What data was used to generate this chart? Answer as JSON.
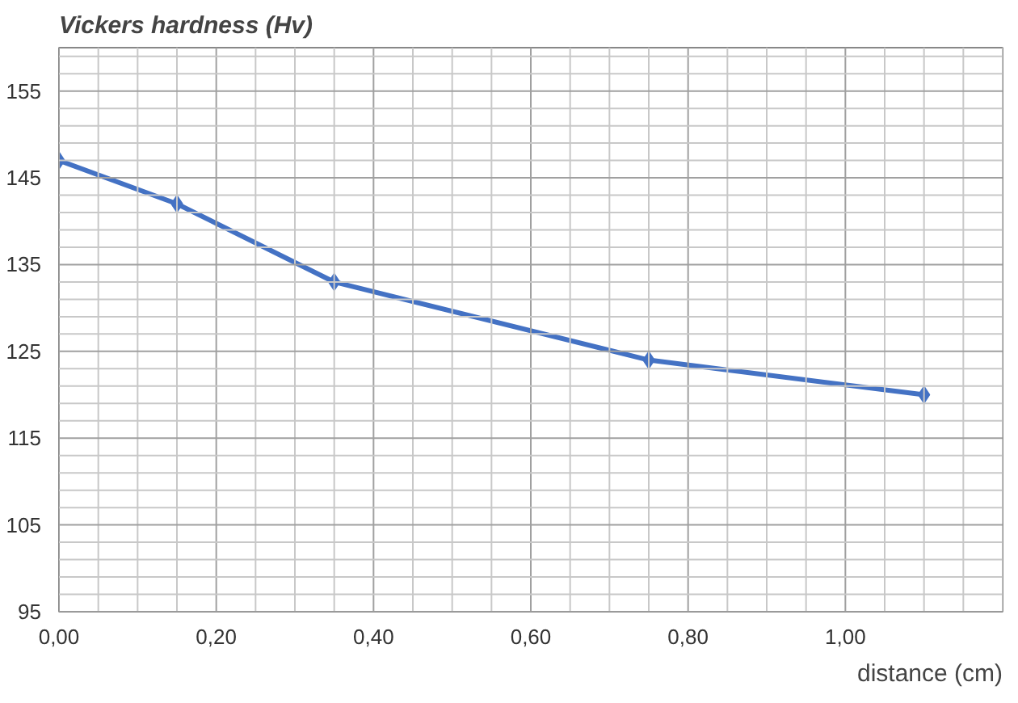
{
  "chart_data": {
    "type": "line",
    "ylabel": "Vickers hardness (Hv)",
    "xlabel": "distance (cm)",
    "x": [
      0,
      0.15,
      0.35,
      0.75,
      1.1
    ],
    "series": [
      {
        "color": "#4472c4",
        "values": [
          147,
          142,
          133,
          124,
          120
        ]
      }
    ],
    "xlim": [
      0,
      1.2
    ],
    "ylim": [
      95,
      160
    ],
    "xticks": [
      {
        "value": 0,
        "label": "0,00"
      },
      {
        "value": 0.05,
        "label": null
      },
      {
        "value": 0.1,
        "label": null
      },
      {
        "value": 0.15,
        "label": null
      },
      {
        "value": 0.2,
        "label": "0,20"
      },
      {
        "value": 0.25,
        "label": null
      },
      {
        "value": 0.3,
        "label": null
      },
      {
        "value": 0.35,
        "label": null
      },
      {
        "value": 0.4,
        "label": "0,40"
      },
      {
        "value": 0.45,
        "label": null
      },
      {
        "value": 0.5,
        "label": null
      },
      {
        "value": 0.55,
        "label": null
      },
      {
        "value": 0.6,
        "label": "0,60"
      },
      {
        "value": 0.65,
        "label": null
      },
      {
        "value": 0.7,
        "label": null
      },
      {
        "value": 0.75,
        "label": null
      },
      {
        "value": 0.8,
        "label": "0,80"
      },
      {
        "value": 0.85,
        "label": null
      },
      {
        "value": 0.9,
        "label": null
      },
      {
        "value": 0.95,
        "label": null
      },
      {
        "value": 1.0,
        "label": "1,00"
      },
      {
        "value": 1.05,
        "label": null
      },
      {
        "value": 1.1,
        "label": null
      },
      {
        "value": 1.15,
        "label": null
      },
      {
        "value": 1.2,
        "label": null
      }
    ],
    "yticks": [
      95,
      {
        "value": 97,
        "label": null
      },
      {
        "value": 99,
        "label": null
      },
      {
        "value": 101,
        "label": null
      },
      {
        "value": 103,
        "label": null
      },
      105,
      {
        "value": 107,
        "label": null
      },
      {
        "value": 109,
        "label": null
      },
      {
        "value": 111,
        "label": null
      },
      {
        "value": 113,
        "label": null
      },
      115,
      {
        "value": 117,
        "label": null
      },
      {
        "value": 119,
        "label": null
      },
      {
        "value": 121,
        "label": null
      },
      {
        "value": 123,
        "label": null
      },
      125,
      {
        "value": 127,
        "label": null
      },
      {
        "value": 129,
        "label": null
      },
      {
        "value": 131,
        "label": null
      },
      {
        "value": 133,
        "label": null
      },
      135,
      {
        "value": 137,
        "label": null
      },
      {
        "value": 139,
        "label": null
      },
      {
        "value": 141,
        "label": null
      },
      {
        "value": 143,
        "label": null
      },
      145,
      {
        "value": 147,
        "label": null
      },
      {
        "value": 149,
        "label": null
      },
      {
        "value": 151,
        "label": null
      },
      {
        "value": 153,
        "label": null
      },
      155,
      {
        "value": 157,
        "label": null
      },
      {
        "value": 159,
        "label": null
      }
    ],
    "grid": true,
    "marker": "diamond",
    "line_style": "solid"
  }
}
